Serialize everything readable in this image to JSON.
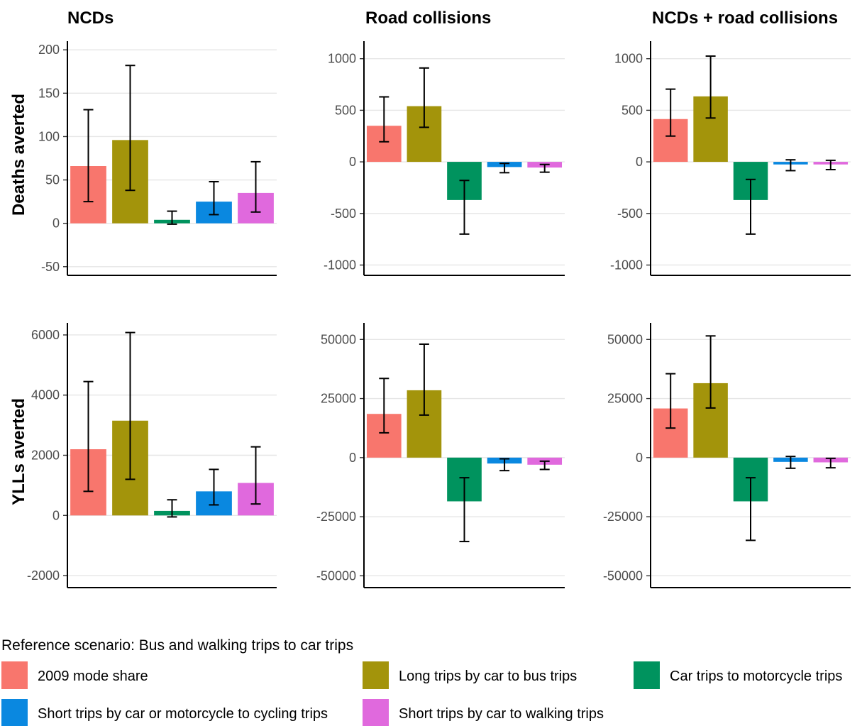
{
  "chart_data": {
    "type": "bar",
    "categories": [
      "2009 mode share",
      "Long trips by car to bus trips",
      "Car trips to motorcycle trips",
      "Short trips by car or motorcycle to cycling trips",
      "Short trips by car to walking trips"
    ],
    "colors": [
      "#F8766D",
      "#A3940B",
      "#00935E",
      "#0A88E0",
      "#E069DD"
    ],
    "column_titles": [
      "NCDs",
      "Road collisions",
      "NCDs + road collisions"
    ],
    "row_labels": [
      "Deaths averted",
      "YLLs averted"
    ],
    "legend": {
      "title": "Reference scenario: Bus and walking trips to car trips",
      "placement": "bottom"
    },
    "panels": [
      {
        "row": 0,
        "col": 0,
        "title": "NCDs",
        "ylabel": "Deaths averted",
        "ylim": [
          -60,
          210
        ],
        "ticks": [
          -50,
          0,
          50,
          100,
          150,
          200
        ],
        "tick_labels": [
          "-50",
          "0",
          "50",
          "100",
          "150",
          "200"
        ],
        "values": [
          66,
          96,
          4,
          25,
          35
        ],
        "err_low": [
          25,
          38,
          -1,
          10,
          13
        ],
        "err_high": [
          131,
          182,
          14,
          48,
          71
        ]
      },
      {
        "row": 0,
        "col": 1,
        "title": "Road collisions",
        "ylabel": "",
        "ylim": [
          -1100,
          1170
        ],
        "ticks": [
          -1000,
          -500,
          0,
          500,
          1000
        ],
        "tick_labels": [
          "-1000",
          "-500",
          "0",
          "500",
          "1000"
        ],
        "values": [
          350,
          540,
          -370,
          -50,
          -55
        ],
        "err_low": [
          195,
          335,
          -700,
          -105,
          -100
        ],
        "err_high": [
          630,
          910,
          -180,
          -15,
          -25
        ]
      },
      {
        "row": 0,
        "col": 2,
        "title": "NCDs + road collisions",
        "ylabel": "",
        "ylim": [
          -1100,
          1170
        ],
        "ticks": [
          -1000,
          -500,
          0,
          500,
          1000
        ],
        "tick_labels": [
          "-1000",
          "-500",
          "0",
          "500",
          "1000"
        ],
        "values": [
          415,
          635,
          -370,
          -25,
          -25
        ],
        "err_low": [
          250,
          425,
          -700,
          -85,
          -75
        ],
        "err_high": [
          705,
          1025,
          -170,
          20,
          15
        ]
      },
      {
        "row": 1,
        "col": 0,
        "title": "",
        "ylabel": "YLLs averted",
        "ylim": [
          -2400,
          6400
        ],
        "ticks": [
          -2000,
          0,
          2000,
          4000,
          6000
        ],
        "tick_labels": [
          "-2000",
          "0",
          "2000",
          "4000",
          "6000"
        ],
        "values": [
          2200,
          3150,
          150,
          800,
          1080
        ],
        "err_low": [
          800,
          1200,
          -50,
          350,
          380
        ],
        "err_high": [
          4450,
          6080,
          520,
          1530,
          2280
        ]
      },
      {
        "row": 1,
        "col": 1,
        "title": "",
        "ylabel": "",
        "ylim": [
          -55000,
          57000
        ],
        "ticks": [
          -50000,
          -25000,
          0,
          25000,
          50000
        ],
        "tick_labels": [
          "-50000",
          "-25000",
          "0",
          "25000",
          "50000"
        ],
        "values": [
          18500,
          28500,
          -18500,
          -2500,
          -3000
        ],
        "err_low": [
          10500,
          18000,
          -35500,
          -5500,
          -5000
        ],
        "err_high": [
          33500,
          48000,
          -8500,
          -500,
          -1500
        ]
      },
      {
        "row": 1,
        "col": 2,
        "title": "",
        "ylabel": "",
        "ylim": [
          -55000,
          57000
        ],
        "ticks": [
          -50000,
          -25000,
          0,
          25000,
          50000
        ],
        "tick_labels": [
          "-50000",
          "-25000",
          "0",
          "25000",
          "50000"
        ],
        "values": [
          20800,
          31500,
          -18500,
          -1800,
          -2000
        ],
        "err_low": [
          12500,
          21000,
          -35000,
          -4500,
          -4300
        ],
        "err_high": [
          35500,
          51500,
          -8500,
          500,
          -300
        ]
      }
    ],
    "grid": true
  }
}
